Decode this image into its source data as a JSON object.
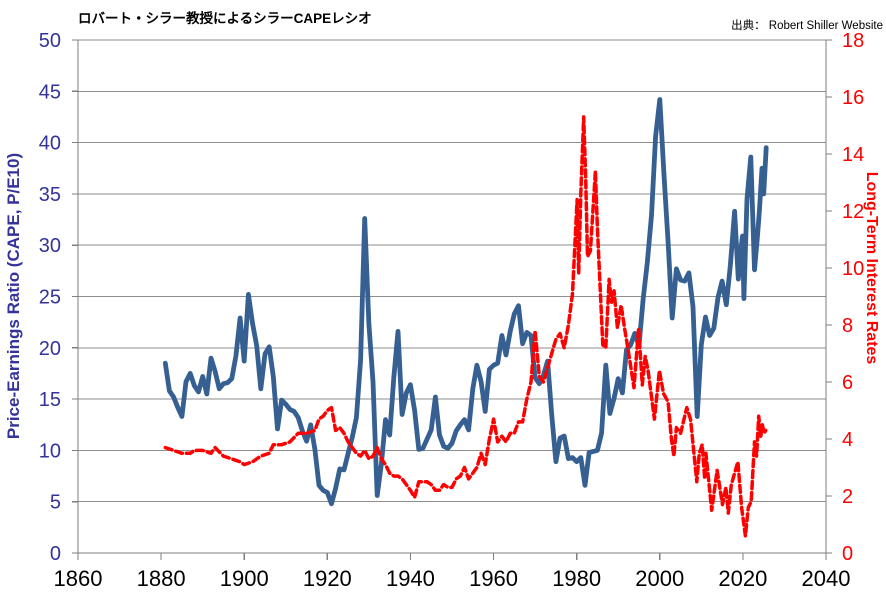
{
  "chart_data": {
    "type": "line",
    "title": "ロバート・シラー教授によるシラーCAPEレシオ",
    "source": "出典： Robert Shiller Website",
    "grid": "horizontal",
    "grid_color": "#8E8E8E",
    "axis_line_color": "#7F7F7F",
    "x_axis": {
      "min": 1860,
      "max": 2040,
      "ticks": [
        1860,
        1880,
        1900,
        1920,
        1940,
        1960,
        1980,
        2000,
        2020,
        2040
      ],
      "label_color": "#000000"
    },
    "left_axis": {
      "label": "Price-Earnings Ratio (CAPE, P/E10)",
      "min": 0,
      "max": 50,
      "ticks": [
        0,
        5,
        10,
        15,
        20,
        25,
        30,
        35,
        40,
        45,
        50
      ],
      "color": "#333399"
    },
    "right_axis": {
      "label": "Long-Term Interest Rates",
      "min": 0,
      "max": 18,
      "ticks": [
        0,
        2,
        4,
        6,
        8,
        10,
        12,
        14,
        16,
        18
      ],
      "color": "#FF0000"
    },
    "series": [
      {
        "name": "Shiller CAPE (P/E10)",
        "axis": "left",
        "color": "#366092",
        "style": "solid",
        "width": 4.8,
        "points": [
          [
            1881,
            18.5
          ],
          [
            1882,
            15.8
          ],
          [
            1883,
            15.2
          ],
          [
            1884,
            14.2
          ],
          [
            1885,
            13.3
          ],
          [
            1886,
            16.7
          ],
          [
            1887,
            17.5
          ],
          [
            1888,
            16.3
          ],
          [
            1889,
            15.7
          ],
          [
            1890,
            17.2
          ],
          [
            1891,
            15.5
          ],
          [
            1892,
            19
          ],
          [
            1893,
            17.7
          ],
          [
            1894,
            16
          ],
          [
            1895,
            16.5
          ],
          [
            1896,
            16.6
          ],
          [
            1897,
            17
          ],
          [
            1898,
            19.2
          ],
          [
            1899,
            22.9
          ],
          [
            1900,
            18.7
          ],
          [
            1901,
            25.2
          ],
          [
            1902,
            22.4
          ],
          [
            1903,
            20.2
          ],
          [
            1904,
            16
          ],
          [
            1905,
            19.4
          ],
          [
            1906,
            20.1
          ],
          [
            1907,
            17.2
          ],
          [
            1908,
            12.1
          ],
          [
            1909,
            14.9
          ],
          [
            1910,
            14.5
          ],
          [
            1911,
            14
          ],
          [
            1912,
            13.8
          ],
          [
            1913,
            13.2
          ],
          [
            1914,
            11.9
          ],
          [
            1915,
            10.9
          ],
          [
            1916,
            12.5
          ],
          [
            1917,
            10.1
          ],
          [
            1918,
            6.6
          ],
          [
            1919,
            6.1
          ],
          [
            1920,
            5.9
          ],
          [
            1921,
            4.8
          ],
          [
            1922,
            6.3
          ],
          [
            1923,
            8.2
          ],
          [
            1924,
            8.1
          ],
          [
            1925,
            9.7
          ],
          [
            1926,
            11.3
          ],
          [
            1927,
            13.2
          ],
          [
            1928,
            18.8
          ],
          [
            1929,
            32.6
          ],
          [
            1930,
            22.3
          ],
          [
            1931,
            16.7
          ],
          [
            1932,
            5.6
          ],
          [
            1933,
            8.7
          ],
          [
            1934,
            13
          ],
          [
            1935,
            11.5
          ],
          [
            1936,
            17.1
          ],
          [
            1937,
            21.6
          ],
          [
            1938,
            13.5
          ],
          [
            1939,
            15.6
          ],
          [
            1940,
            16.4
          ],
          [
            1941,
            13.9
          ],
          [
            1942,
            10.1
          ],
          [
            1943,
            10.2
          ],
          [
            1944,
            11.1
          ],
          [
            1945,
            12
          ],
          [
            1946,
            15.2
          ],
          [
            1947,
            11.5
          ],
          [
            1948,
            10.4
          ],
          [
            1949,
            10.2
          ],
          [
            1950,
            10.7
          ],
          [
            1951,
            11.9
          ],
          [
            1952,
            12.5
          ],
          [
            1953,
            13
          ],
          [
            1954,
            12
          ],
          [
            1955,
            16
          ],
          [
            1956,
            18.3
          ],
          [
            1957,
            16.7
          ],
          [
            1958,
            13.8
          ],
          [
            1959,
            17.9
          ],
          [
            1960,
            18.3
          ],
          [
            1961,
            18.5
          ],
          [
            1962,
            21.2
          ],
          [
            1963,
            19.3
          ],
          [
            1964,
            21.6
          ],
          [
            1965,
            23.3
          ],
          [
            1966,
            24.1
          ],
          [
            1967,
            20.4
          ],
          [
            1968,
            21.5
          ],
          [
            1969,
            21.2
          ],
          [
            1970,
            17.1
          ],
          [
            1971,
            16.5
          ],
          [
            1972,
            17.3
          ],
          [
            1973,
            18.7
          ],
          [
            1974,
            13.5
          ],
          [
            1975,
            8.9
          ],
          [
            1976,
            11.2
          ],
          [
            1977,
            11.4
          ],
          [
            1978,
            9.2
          ],
          [
            1979,
            9.3
          ],
          [
            1980,
            8.9
          ],
          [
            1981,
            9.3
          ],
          [
            1982,
            6.6
          ],
          [
            1983,
            9.8
          ],
          [
            1984,
            9.9
          ],
          [
            1985,
            10
          ],
          [
            1986,
            11.7
          ],
          [
            1987,
            18.3
          ],
          [
            1988,
            13.6
          ],
          [
            1989,
            15.1
          ],
          [
            1990,
            17
          ],
          [
            1991,
            15.6
          ],
          [
            1992,
            19.8
          ],
          [
            1993,
            20.3
          ],
          [
            1994,
            21.4
          ],
          [
            1995,
            20.2
          ],
          [
            1996,
            24.8
          ],
          [
            1997,
            28.3
          ],
          [
            1998,
            32.9
          ],
          [
            1999,
            40.6
          ],
          [
            2000,
            44.2
          ],
          [
            2001,
            37
          ],
          [
            2002,
            30.3
          ],
          [
            2003,
            22.9
          ],
          [
            2004,
            27.7
          ],
          [
            2005,
            26.6
          ],
          [
            2006,
            26.5
          ],
          [
            2007,
            27.3
          ],
          [
            2008,
            24
          ],
          [
            2009,
            13.3
          ],
          [
            2010,
            20.3
          ],
          [
            2011,
            23
          ],
          [
            2012,
            21.2
          ],
          [
            2013,
            21.9
          ],
          [
            2014,
            24.9
          ],
          [
            2015,
            26.5
          ],
          [
            2016,
            24.2
          ],
          [
            2017,
            28.1
          ],
          [
            2018,
            33.3
          ],
          [
            2018.9,
            26.7
          ],
          [
            2019.5,
            29.5
          ],
          [
            2019.9,
            30.9
          ],
          [
            2020.25,
            24.8
          ],
          [
            2021,
            34.5
          ],
          [
            2021.9,
            38.6
          ],
          [
            2022.8,
            27.6
          ],
          [
            2023.5,
            30.8
          ],
          [
            2024,
            33.5
          ],
          [
            2024.6,
            37.5
          ],
          [
            2025,
            35
          ],
          [
            2025.6,
            39.5
          ]
        ]
      },
      {
        "name": "Long-Term Interest Rates",
        "axis": "right",
        "color": "#FF0000",
        "style": "dashed",
        "width": 3.5,
        "points": [
          [
            1881,
            3.7
          ],
          [
            1883,
            3.6
          ],
          [
            1885,
            3.5
          ],
          [
            1887,
            3.5
          ],
          [
            1888,
            3.6
          ],
          [
            1890,
            3.6
          ],
          [
            1892,
            3.5
          ],
          [
            1893,
            3.7
          ],
          [
            1895,
            3.4
          ],
          [
            1897,
            3.3
          ],
          [
            1899,
            3.2
          ],
          [
            1900,
            3.1
          ],
          [
            1902,
            3.2
          ],
          [
            1904,
            3.4
          ],
          [
            1906,
            3.5
          ],
          [
            1907,
            3.8
          ],
          [
            1909,
            3.8
          ],
          [
            1911,
            3.9
          ],
          [
            1913,
            4.2
          ],
          [
            1915,
            4.2
          ],
          [
            1917,
            4.3
          ],
          [
            1918,
            4.7
          ],
          [
            1919,
            4.8
          ],
          [
            1920,
            5
          ],
          [
            1921,
            5.1
          ],
          [
            1922,
            4.3
          ],
          [
            1923,
            4.4
          ],
          [
            1924,
            4.2
          ],
          [
            1925,
            3.9
          ],
          [
            1926,
            3.7
          ],
          [
            1927,
            3.5
          ],
          [
            1928,
            3.4
          ],
          [
            1929,
            3.6
          ],
          [
            1930,
            3.3
          ],
          [
            1931,
            3.4
          ],
          [
            1932,
            3.7
          ],
          [
            1933,
            3.3
          ],
          [
            1934,
            3.1
          ],
          [
            1935,
            2.8
          ],
          [
            1936,
            2.7
          ],
          [
            1937,
            2.7
          ],
          [
            1938,
            2.6
          ],
          [
            1939,
            2.4
          ],
          [
            1940,
            2.2
          ],
          [
            1941,
            1.95
          ],
          [
            1942,
            2.5
          ],
          [
            1943,
            2.5
          ],
          [
            1944,
            2.5
          ],
          [
            1945,
            2.4
          ],
          [
            1946,
            2.2
          ],
          [
            1947,
            2.2
          ],
          [
            1948,
            2.4
          ],
          [
            1949,
            2.3
          ],
          [
            1950,
            2.3
          ],
          [
            1951,
            2.6
          ],
          [
            1952,
            2.7
          ],
          [
            1953,
            3
          ],
          [
            1954,
            2.6
          ],
          [
            1955,
            2.8
          ],
          [
            1956,
            3
          ],
          [
            1957,
            3.5
          ],
          [
            1958,
            3.1
          ],
          [
            1959,
            4
          ],
          [
            1960,
            4.7
          ],
          [
            1961,
            3.9
          ],
          [
            1962,
            4.1
          ],
          [
            1963,
            3.9
          ],
          [
            1964,
            4.2
          ],
          [
            1965,
            4.2
          ],
          [
            1966,
            4.6
          ],
          [
            1967,
            4.6
          ],
          [
            1968,
            5.4
          ],
          [
            1969,
            6
          ],
          [
            1970,
            7.8
          ],
          [
            1971,
            6.2
          ],
          [
            1972,
            6
          ],
          [
            1973,
            6.5
          ],
          [
            1974,
            7
          ],
          [
            1975,
            7.5
          ],
          [
            1976,
            7.7
          ],
          [
            1977,
            7.2
          ],
          [
            1978,
            8
          ],
          [
            1979,
            9.1
          ],
          [
            1980.1,
            12.4
          ],
          [
            1980.5,
            9.8
          ],
          [
            1981,
            12.6
          ],
          [
            1981.7,
            15.3
          ],
          [
            1982.2,
            13
          ],
          [
            1982.6,
            10.4
          ],
          [
            1983.3,
            10.6
          ],
          [
            1984.5,
            13.4
          ],
          [
            1985,
            11.4
          ],
          [
            1986.3,
            7.3
          ],
          [
            1987,
            7.2
          ],
          [
            1987.8,
            9.6
          ],
          [
            1988.4,
            8.8
          ],
          [
            1989,
            9.2
          ],
          [
            1989.8,
            7.9
          ],
          [
            1990.7,
            8.7
          ],
          [
            1991.5,
            7.9
          ],
          [
            1992.3,
            7.2
          ],
          [
            1993.8,
            5.8
          ],
          [
            1994.9,
            7.9
          ],
          [
            1995.8,
            5.9
          ],
          [
            1996.5,
            6.9
          ],
          [
            1997.2,
            6.4
          ],
          [
            1998.7,
            4.7
          ],
          [
            1999.9,
            6.4
          ],
          [
            2000.9,
            5.6
          ],
          [
            2002,
            5.3
          ],
          [
            2002.8,
            4
          ],
          [
            2003.4,
            3.4
          ],
          [
            2004,
            4.4
          ],
          [
            2005,
            4.2
          ],
          [
            2006.5,
            5.1
          ],
          [
            2007.4,
            4.7
          ],
          [
            2008.9,
            2.5
          ],
          [
            2009.5,
            3.5
          ],
          [
            2010.2,
            3.8
          ],
          [
            2010.8,
            2.6
          ],
          [
            2011.1,
            3.5
          ],
          [
            2012.5,
            1.5
          ],
          [
            2013.8,
            2.9
          ],
          [
            2015.1,
            1.7
          ],
          [
            2015.9,
            2.3
          ],
          [
            2016.5,
            1.4
          ],
          [
            2017.2,
            2.4
          ],
          [
            2018.8,
            3.2
          ],
          [
            2019.7,
            1.6
          ],
          [
            2020.6,
            0.6
          ],
          [
            2021.3,
            1.6
          ],
          [
            2022,
            1.8
          ],
          [
            2022.8,
            3.9
          ],
          [
            2023.3,
            3.4
          ],
          [
            2023.8,
            4.8
          ],
          [
            2024.3,
            4.1
          ],
          [
            2024.7,
            4.5
          ],
          [
            2025.1,
            4.2
          ],
          [
            2025.5,
            4.3
          ]
        ]
      }
    ]
  }
}
